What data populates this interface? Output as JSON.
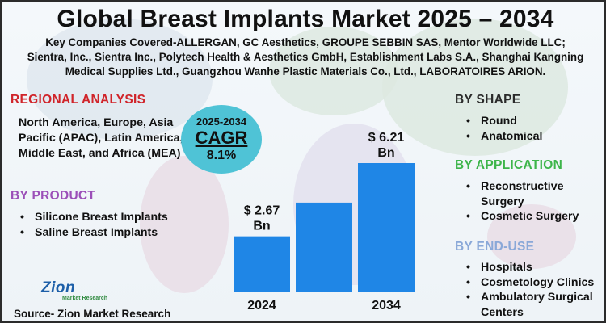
{
  "title": "Global Breast Implants Market 2025 – 2034",
  "subtitle": "Key Companies Covered-ALLERGAN, GC Aesthetics, GROUPE SEBBIN SAS, Mentor Worldwide LLC; Sientra, Inc., Sientra Inc., Polytech Health & Aesthetics GmbH, Establishment Labs S.A., Shanghai Kangning Medical Supplies Ltd., Guangzhou Wanhe Plastic Materials Co., Ltd., LABORATOIRES ARION.",
  "regional": {
    "heading": "REGIONAL ANALYSIS",
    "text": "North America, Europe, Asia Pacific (APAC), Latin America, Middle East, and Africa (MEA)"
  },
  "product": {
    "heading": "BY PRODUCT",
    "items": [
      "Silicone Breast Implants",
      "Saline Breast Implants"
    ]
  },
  "cagr": {
    "years": "2025-2034",
    "label": "CAGR",
    "value": "8.1%"
  },
  "shape": {
    "heading": "BY SHAPE",
    "items": [
      "Round",
      "Anatomical"
    ]
  },
  "application": {
    "heading": "BY APPLICATION",
    "items": [
      "Reconstructive Surgery",
      "Cosmetic Surgery"
    ]
  },
  "end_use": {
    "heading": "BY END-USE",
    "items": [
      "Hospitals",
      "Cosmetology Clinics",
      "Ambulatory Surgical Centers"
    ]
  },
  "logo": {
    "name": "Zion",
    "tagline": "Market Research"
  },
  "source": "Source- Zion Market Research",
  "colors": {
    "bar": "#1f86e6",
    "cagr_circle": "#4fc3d6",
    "regional_heading": "#d0242a",
    "product_heading": "#9b4fb8",
    "application_heading": "#3db54a",
    "end_use_heading": "#8aa8d8"
  },
  "chart_data": {
    "type": "bar",
    "categories": [
      "2024",
      "",
      "2034"
    ],
    "values": [
      2.67,
      4.3,
      6.21
    ],
    "data_labels": [
      "$ 2.67 Bn",
      "",
      "$ 6.21 Bn"
    ],
    "title": "",
    "xlabel": "",
    "ylabel": "",
    "ylim": [
      0,
      6.21
    ],
    "grid": false
  }
}
